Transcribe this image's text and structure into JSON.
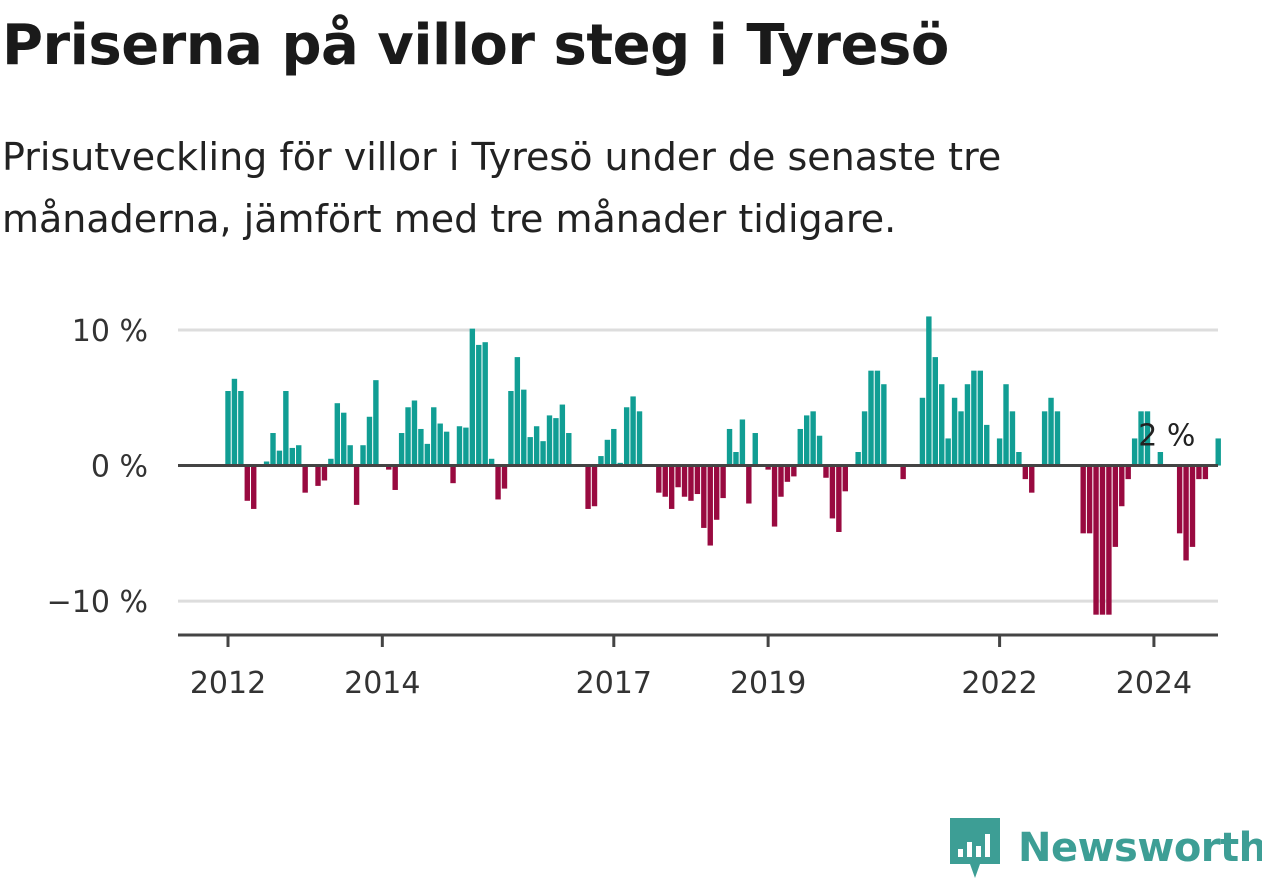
{
  "header": {
    "title": "Priserna på villor steg i Tyresö",
    "subtitle": "Prisutveckling för villor i Tyresö under de senaste tre månaderna, jämfört med tre månader tidigare."
  },
  "brand": {
    "name": "Newsworthy",
    "logo_icon": "bar-chart-pin-icon",
    "color": "#3d9e95"
  },
  "chart_data": {
    "type": "bar",
    "title": "",
    "xlabel": "",
    "ylabel": "",
    "x_start": "2012-01",
    "x_end": "2024-04",
    "ylim": [
      -12.5,
      10
    ],
    "grid": true,
    "legend": "none",
    "y_ticks": [
      {
        "value": 10,
        "label": "10 %"
      },
      {
        "value": 0,
        "label": "0 %"
      },
      {
        "value": -10,
        "label": "−10 %"
      }
    ],
    "x_ticks": [
      {
        "value": "2012-01",
        "label": "2012"
      },
      {
        "value": "2014-01",
        "label": "2014"
      },
      {
        "value": "2017-01",
        "label": "2017"
      },
      {
        "value": "2019-01",
        "label": "2019"
      },
      {
        "value": "2022-01",
        "label": "2022"
      },
      {
        "value": "2024-01",
        "label": "2024"
      }
    ],
    "colors": {
      "positive": "#119e94",
      "negative": "#990a40",
      "zero_line": "#444444",
      "grid": "#dddddd",
      "axis": "#444444"
    },
    "annotation": {
      "date": "2024-03",
      "label": "2 %"
    },
    "values": [
      5.5,
      6.4,
      5.5,
      -2.6,
      -3.2,
      0,
      0.3,
      2.4,
      1.1,
      5.5,
      1.3,
      1.5,
      -2.0,
      0,
      -1.5,
      -1.1,
      0.5,
      4.6,
      3.9,
      1.5,
      -2.9,
      1.5,
      3.6,
      6.3,
      0,
      -0.3,
      -1.8,
      2.4,
      4.3,
      4.8,
      2.7,
      1.6,
      4.3,
      3.1,
      2.5,
      -1.3,
      2.9,
      2.8,
      10.1,
      8.9,
      9.1,
      0.5,
      -2.5,
      -1.7,
      5.5,
      8.0,
      5.6,
      2.1,
      2.9,
      1.8,
      3.7,
      3.5,
      4.5,
      2.4,
      0,
      0,
      -3.2,
      -3.0,
      0.7,
      1.9,
      2.7,
      0.2,
      4.3,
      5.1,
      4.0,
      0,
      0,
      -2.0,
      -2.3,
      -3.2,
      -1.6,
      -2.3,
      -2.6,
      -2.1,
      -4.6,
      -5.9,
      -4.0,
      -2.4,
      2.7,
      1.0,
      3.4,
      -2.8,
      2.4,
      0,
      -0.3,
      -4.5,
      -2.3,
      -1.2,
      -0.8,
      2.7,
      3.7,
      4.0,
      2.2,
      -0.9,
      -3.9,
      -4.9,
      -1.9,
      0,
      1.0,
      4.0,
      7.0,
      7.0,
      6.0,
      0,
      0,
      -1.0,
      0,
      0,
      5.0,
      11.0,
      8.0,
      6.0,
      2.0,
      5.0,
      4.0,
      6.0,
      7.0,
      7.0,
      3.0,
      0,
      2.0,
      6.0,
      4.0,
      1.0,
      -1.0,
      -2.0,
      0,
      4.0,
      5.0,
      4.0,
      0,
      0,
      0,
      -5.0,
      -5.0,
      -11.0,
      -11.0,
      -11.0,
      -6.0,
      -3.0,
      -1.0,
      2.0,
      4.0,
      4.0,
      0,
      1.0,
      0,
      0,
      -5.0,
      -7.0,
      -6.0,
      -1.0,
      -1.0,
      0,
      2.0
    ]
  }
}
